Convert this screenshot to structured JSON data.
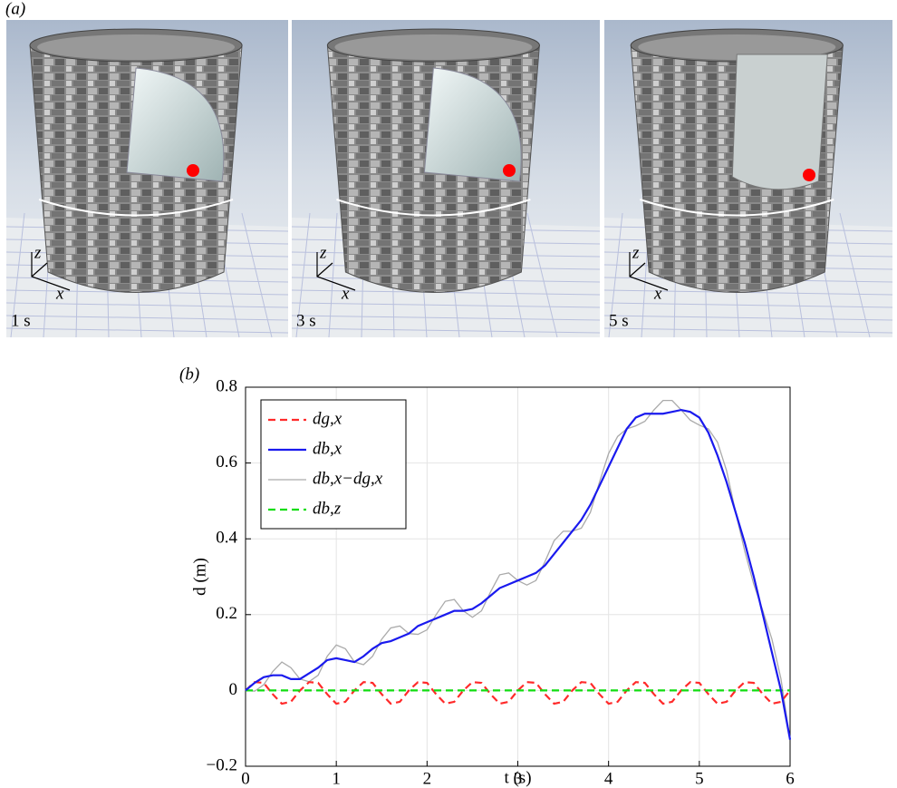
{
  "panel_a": {
    "label": "(a)",
    "frames": [
      {
        "time": "1 s",
        "axis_z": "z",
        "axis_x": "x"
      },
      {
        "time": "3 s",
        "axis_z": "z",
        "axis_x": "x"
      },
      {
        "time": "5 s",
        "axis_z": "z",
        "axis_x": "x"
      }
    ]
  },
  "chart_data": {
    "type": "line",
    "panel_label": "(b)",
    "xlabel": "t (s)",
    "ylabel": "d (m)",
    "xlim": [
      0,
      6
    ],
    "ylim": [
      -0.2,
      0.8
    ],
    "xticks": [
      0,
      1,
      2,
      3,
      4,
      5,
      6
    ],
    "yticks": [
      {
        "value": -0.2,
        "label": "−0.2"
      },
      0,
      0.2,
      0.4,
      0.6,
      0.8
    ],
    "grid": true,
    "legend": "upper left",
    "x": [
      0,
      0.1,
      0.2,
      0.3,
      0.4,
      0.5,
      0.6,
      0.7,
      0.8,
      0.9,
      1.0,
      1.1,
      1.2,
      1.3,
      1.4,
      1.5,
      1.6,
      1.7,
      1.8,
      1.9,
      2.0,
      2.1,
      2.2,
      2.3,
      2.4,
      2.5,
      2.6,
      2.7,
      2.8,
      2.9,
      3.0,
      3.1,
      3.2,
      3.3,
      3.4,
      3.5,
      3.6,
      3.7,
      3.8,
      3.9,
      4.0,
      4.1,
      4.2,
      4.3,
      4.4,
      4.5,
      4.6,
      4.7,
      4.8,
      4.9,
      5.0,
      5.1,
      5.2,
      5.3,
      5.4,
      5.5,
      5.6,
      5.7,
      5.8,
      5.9,
      6.0
    ],
    "series": [
      {
        "name": "dg,x",
        "color": "#ff2a2a",
        "dash": true,
        "values": [
          0,
          0.022,
          0.02,
          -0.01,
          -0.035,
          -0.03,
          0,
          0.022,
          0.02,
          -0.01,
          -0.035,
          -0.03,
          0,
          0.022,
          0.02,
          -0.01,
          -0.035,
          -0.03,
          0,
          0.022,
          0.02,
          -0.01,
          -0.035,
          -0.03,
          0,
          0.022,
          0.02,
          -0.01,
          -0.035,
          -0.03,
          0,
          0.022,
          0.02,
          -0.01,
          -0.035,
          -0.03,
          0,
          0.022,
          0.02,
          -0.01,
          -0.035,
          -0.03,
          0,
          0.022,
          0.02,
          -0.01,
          -0.035,
          -0.03,
          0,
          0.022,
          0.02,
          -0.01,
          -0.035,
          -0.03,
          0,
          0.022,
          0.02,
          -0.01,
          -0.035,
          -0.03,
          0
        ]
      },
      {
        "name": "db,x",
        "color": "#1a1aee",
        "dash": false,
        "values": [
          0,
          0.02,
          0.035,
          0.04,
          0.04,
          0.03,
          0.03,
          0.045,
          0.06,
          0.08,
          0.085,
          0.08,
          0.075,
          0.09,
          0.11,
          0.125,
          0.13,
          0.14,
          0.15,
          0.17,
          0.18,
          0.19,
          0.2,
          0.21,
          0.21,
          0.215,
          0.23,
          0.25,
          0.27,
          0.28,
          0.29,
          0.3,
          0.31,
          0.33,
          0.36,
          0.39,
          0.42,
          0.45,
          0.49,
          0.54,
          0.59,
          0.64,
          0.69,
          0.72,
          0.73,
          0.73,
          0.73,
          0.735,
          0.74,
          0.735,
          0.72,
          0.68,
          0.62,
          0.55,
          0.47,
          0.39,
          0.3,
          0.2,
          0.1,
          0.0,
          -0.13
        ]
      },
      {
        "name": "db,x−dg,x",
        "color": "#aaaaaa",
        "dash": false,
        "values": [
          0,
          -0.002,
          0.015,
          0.05,
          0.075,
          0.06,
          0.03,
          0.023,
          0.04,
          0.09,
          0.12,
          0.11,
          0.075,
          0.068,
          0.09,
          0.135,
          0.165,
          0.17,
          0.15,
          0.148,
          0.16,
          0.2,
          0.235,
          0.24,
          0.21,
          0.193,
          0.21,
          0.26,
          0.305,
          0.31,
          0.29,
          0.278,
          0.29,
          0.34,
          0.395,
          0.42,
          0.42,
          0.428,
          0.47,
          0.55,
          0.625,
          0.67,
          0.69,
          0.698,
          0.71,
          0.74,
          0.765,
          0.765,
          0.74,
          0.713,
          0.7,
          0.69,
          0.655,
          0.58,
          0.47,
          0.368,
          0.28,
          0.21,
          0.135,
          0.03,
          -0.13
        ]
      },
      {
        "name": "db,z",
        "color": "#11dd11",
        "dash": true,
        "values": [
          0,
          0,
          0,
          0,
          0,
          0,
          0,
          0,
          0,
          0,
          0,
          0,
          0,
          0,
          0,
          0,
          0,
          0,
          0,
          0,
          0,
          0,
          0,
          0,
          0,
          0,
          0,
          0,
          0,
          0,
          0,
          0,
          0,
          0,
          0,
          0,
          0,
          0,
          0,
          0,
          0,
          0,
          0,
          0,
          0,
          0,
          0,
          0,
          0,
          0,
          0,
          0,
          0,
          0,
          0,
          0,
          0,
          0,
          0,
          0,
          0
        ]
      }
    ]
  }
}
